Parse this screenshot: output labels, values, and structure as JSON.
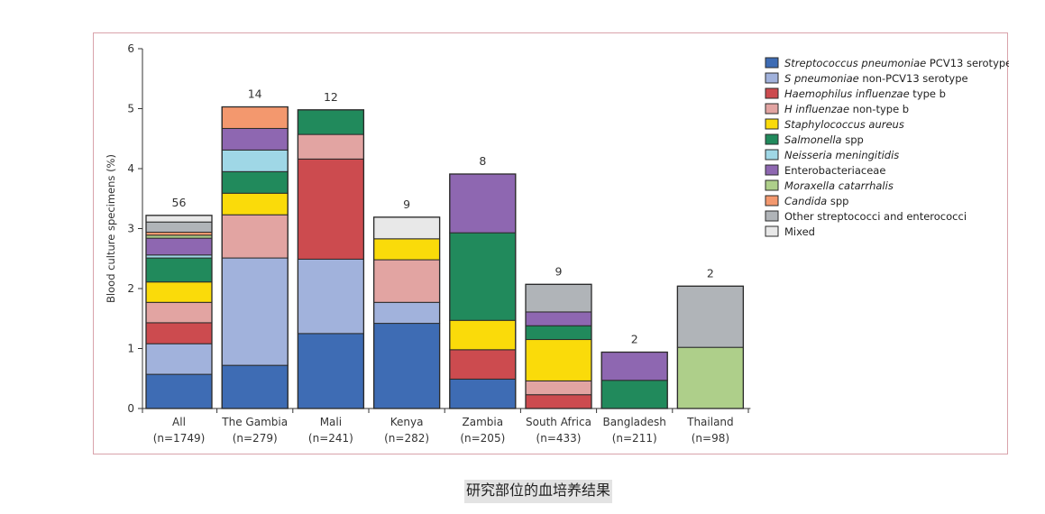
{
  "caption": "研究部位的血培养结果",
  "chart_data": {
    "type": "bar",
    "stacked": true,
    "ylabel": "Blood culture specimens (%)",
    "xlabel": "",
    "ylim": [
      0,
      6
    ],
    "yticks": [
      0,
      1,
      2,
      3,
      4,
      5,
      6
    ],
    "grid": false,
    "legend_position": "top-right",
    "categories": [
      {
        "name": "All",
        "n": "(n=1749)",
        "count": "56"
      },
      {
        "name": "The Gambia",
        "n": "(n=279)",
        "count": "14"
      },
      {
        "name": "Mali",
        "n": "(n=241)",
        "count": "12"
      },
      {
        "name": "Kenya",
        "n": "(n=282)",
        "count": "9"
      },
      {
        "name": "Zambia",
        "n": "(n=205)",
        "count": "8"
      },
      {
        "name": "South Africa",
        "n": "(n=433)",
        "count": "9"
      },
      {
        "name": "Bangladesh",
        "n": "(n=211)",
        "count": "2"
      },
      {
        "name": "Thailand",
        "n": "(n=98)",
        "count": "2"
      }
    ],
    "series": [
      {
        "name": "PCV13",
        "legend_italic": "Streptococcus pneumoniae",
        "legend_rest": " PCV13 serotype",
        "color": "#3e6cb4",
        "values": [
          0.57,
          0.72,
          1.25,
          1.42,
          0.49,
          0,
          0,
          0
        ]
      },
      {
        "name": "nonPCV13",
        "legend_italic": "S pneumoniae",
        "legend_rest": " non-PCV13 serotype",
        "color": "#a1b2dc",
        "values": [
          0.51,
          1.79,
          1.24,
          0.35,
          0,
          0,
          0,
          0
        ]
      },
      {
        "name": "Hib",
        "legend_italic": "Haemophilus influenzae",
        "legend_rest": " type b",
        "color": "#cc4b4f",
        "values": [
          0.35,
          0,
          1.67,
          0,
          0.49,
          0.23,
          0,
          0
        ]
      },
      {
        "name": "Hi-nontype-b",
        "legend_italic": "H influenzae",
        "legend_rest": " non-type b",
        "color": "#e2a4a2",
        "values": [
          0.34,
          0.72,
          0.41,
          0.71,
          0,
          0.23,
          0,
          0
        ]
      },
      {
        "name": "Saureus",
        "legend_italic": "Staphylococcus aureus",
        "legend_rest": "",
        "color": "#fadb0a",
        "values": [
          0.34,
          0.36,
          0,
          0.35,
          0.49,
          0.69,
          0,
          0
        ]
      },
      {
        "name": "Salmonella",
        "legend_italic": "Salmonella",
        "legend_rest": " spp",
        "color": "#218a5c",
        "values": [
          0.4,
          0.36,
          0.41,
          0,
          1.46,
          0.23,
          0.47,
          0
        ]
      },
      {
        "name": "Nmen",
        "legend_italic": "Neisseria meningitidis",
        "legend_rest": "",
        "color": "#9fd7e6",
        "values": [
          0.05,
          0.36,
          0,
          0,
          0,
          0,
          0,
          0
        ]
      },
      {
        "name": "Entero",
        "legend_italic": "",
        "legend_rest": "Enterobacteriaceae",
        "color": "#8e67b1",
        "values": [
          0.28,
          0.36,
          0,
          0,
          0.98,
          0.23,
          0.47,
          0
        ]
      },
      {
        "name": "Moraxella",
        "legend_italic": "Moraxella catarrhalis",
        "legend_rest": "",
        "color": "#aecf8a",
        "values": [
          0.05,
          0,
          0,
          0,
          0,
          0,
          0,
          1.02
        ]
      },
      {
        "name": "Candida",
        "legend_italic": "Candida",
        "legend_rest": " spp",
        "color": "#f3986e",
        "values": [
          0.05,
          0.36,
          0,
          0,
          0,
          0,
          0,
          0
        ]
      },
      {
        "name": "OtherStrep",
        "legend_italic": "",
        "legend_rest": "Other streptococci and enterococci",
        "color": "#b0b4b8",
        "values": [
          0.17,
          0,
          0,
          0,
          0,
          0.46,
          0,
          1.02
        ]
      },
      {
        "name": "Mixed",
        "legend_italic": "",
        "legend_rest": "Mixed",
        "color": "#e8e8e8",
        "values": [
          0.11,
          0,
          0,
          0.36,
          0,
          0,
          0,
          0
        ]
      }
    ]
  }
}
